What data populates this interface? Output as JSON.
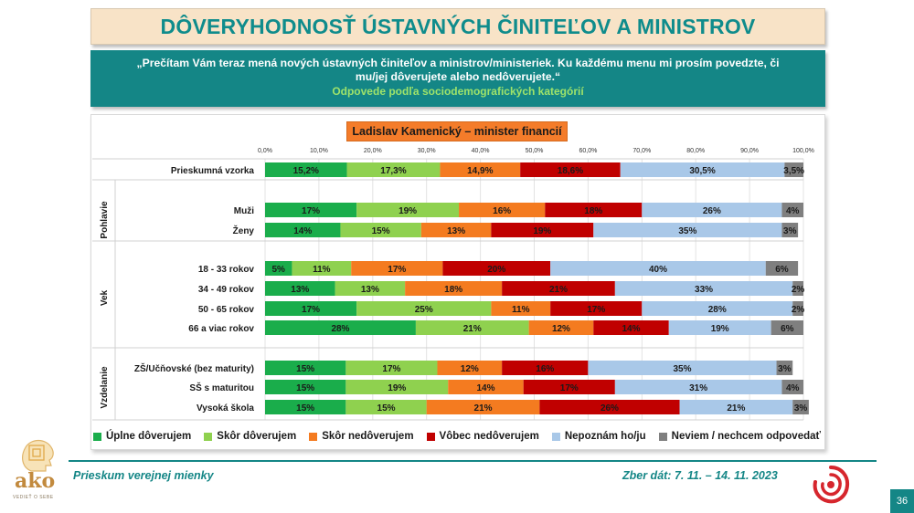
{
  "header": {
    "title": "DÔVERYHODNOSŤ ÚSTAVNÝCH ČINITEĽOV A MINISTROV"
  },
  "question": {
    "text": "„Prečítam Vám teraz mená nových ústavných činiteľov a ministrov/ministeriek. Ku každému menu mi prosím povedzte, či mu/jej dôverujete alebo nedôverujete.“",
    "subtitle": "Odpovede podľa sociodemografických kategórií"
  },
  "chart_data": {
    "type": "bar",
    "orientation": "horizontal-stacked-100",
    "title": "Ladislav Kamenický – minister financií",
    "xlim": [
      0,
      100
    ],
    "ticks": [
      "0,0%",
      "10,0%",
      "20,0%",
      "30,0%",
      "40,0%",
      "50,0%",
      "60,0%",
      "70,0%",
      "80,0%",
      "90,0%",
      "100,0%"
    ],
    "series": [
      {
        "name": "Úplne dôverujem",
        "color": "#1aad4b"
      },
      {
        "name": "Skôr dôverujem",
        "color": "#8fd14f"
      },
      {
        "name": "Skôr nedôverujem",
        "color": "#f47b20"
      },
      {
        "name": "Vôbec nedôverujem",
        "color": "#c00000"
      },
      {
        "name": "Nepoznám ho/ju",
        "color": "#a9c8e8"
      },
      {
        "name": "Neviem / nechcem odpovedať",
        "color": "#7f7f7f"
      }
    ],
    "groups": [
      {
        "name": "",
        "rows": [
          {
            "label": "Prieskumná vzorka",
            "values": [
              15.2,
              17.3,
              14.9,
              18.6,
              30.5,
              3.5
            ],
            "labels": [
              "15,2%",
              "17,3%",
              "14,9%",
              "18,6%",
              "30,5%",
              "3,5%"
            ]
          }
        ]
      },
      {
        "name": "Pohlavie",
        "rows": [
          {
            "label": "Muži",
            "values": [
              17,
              19,
              16,
              18,
              26,
              4
            ],
            "labels": [
              "17%",
              "19%",
              "16%",
              "18%",
              "26%",
              "4%"
            ]
          },
          {
            "label": "Ženy",
            "values": [
              14,
              15,
              13,
              19,
              35,
              3
            ],
            "labels": [
              "14%",
              "15%",
              "13%",
              "19%",
              "35%",
              "3%"
            ]
          }
        ]
      },
      {
        "name": "Vek",
        "rows": [
          {
            "label": "18 - 33 rokov",
            "values": [
              5,
              11,
              17,
              20,
              40,
              6
            ],
            "labels": [
              "5%",
              "11%",
              "17%",
              "20%",
              "40%",
              "6%"
            ]
          },
          {
            "label": "34 - 49 rokov",
            "values": [
              13,
              13,
              18,
              21,
              33,
              2
            ],
            "labels": [
              "13%",
              "13%",
              "18%",
              "21%",
              "33%",
              "2%"
            ]
          },
          {
            "label": "50 - 65 rokov",
            "values": [
              17,
              25,
              11,
              17,
              28,
              2
            ],
            "labels": [
              "17%",
              "25%",
              "11%",
              "17%",
              "28%",
              "2%"
            ]
          },
          {
            "label": "66 a viac rokov",
            "values": [
              28,
              21,
              12,
              14,
              19,
              6
            ],
            "labels": [
              "28%",
              "21%",
              "12%",
              "14%",
              "19%",
              "6%"
            ]
          }
        ]
      },
      {
        "name": "Vzdelanie",
        "rows": [
          {
            "label": "ZŠ/Učňovské (bez maturity)",
            "values": [
              15,
              17,
              12,
              16,
              35,
              3
            ],
            "labels": [
              "15%",
              "17%",
              "12%",
              "16%",
              "35%",
              "3%"
            ]
          },
          {
            "label": "SŠ s maturitou",
            "values": [
              15,
              19,
              14,
              17,
              31,
              4
            ],
            "labels": [
              "15%",
              "19%",
              "14%",
              "17%",
              "31%",
              "4%"
            ]
          },
          {
            "label": "Vysoká škola",
            "values": [
              15,
              15,
              21,
              26,
              21,
              3
            ],
            "labels": [
              "15%",
              "15%",
              "21%",
              "26%",
              "21%",
              "3%"
            ]
          }
        ]
      }
    ]
  },
  "footer": {
    "survey": "Prieskum verejnej mienky",
    "dates": "Zber dát: 7. 11. – 14. 11. 2023",
    "page": "36"
  },
  "logo": {
    "brand": "ako",
    "tagline": "VEDIEŤ O SEBE"
  }
}
